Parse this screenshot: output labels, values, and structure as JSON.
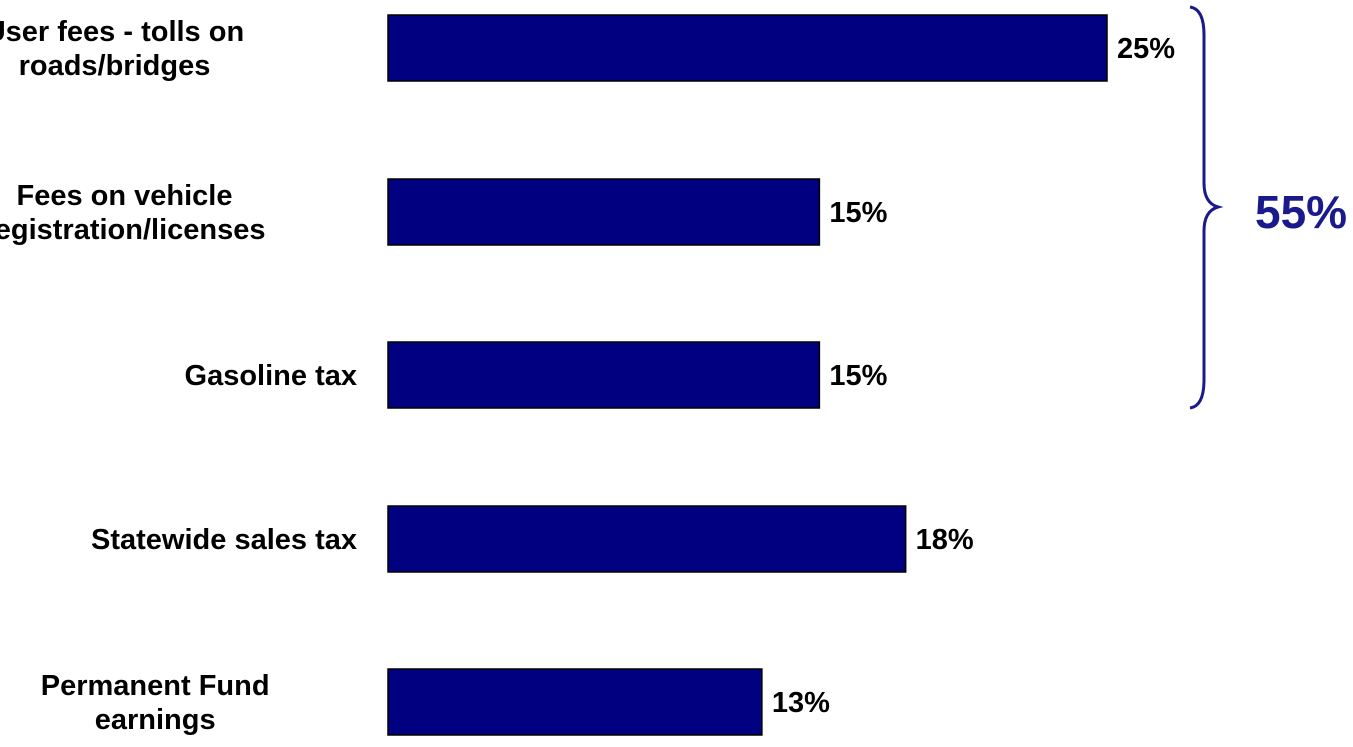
{
  "chart_data": {
    "type": "bar",
    "orientation": "horizontal",
    "categories": [
      [
        "User fees - tolls on",
        "roads/bridges"
      ],
      [
        "Fees on vehicle",
        "registration/licenses"
      ],
      [
        "Gasoline tax"
      ],
      [
        "Statewide sales tax"
      ],
      [
        "Permanent Fund",
        "earnings"
      ]
    ],
    "values": [
      25,
      15,
      15,
      18,
      13
    ],
    "value_labels": [
      "25%",
      "15%",
      "15%",
      "18%",
      "13%"
    ],
    "value_unit": "%",
    "xlim": [
      0,
      25
    ],
    "grid": false,
    "bar_color": "#000080",
    "group_annotation": {
      "label": "55%",
      "covers_categories": [
        0,
        1,
        2
      ],
      "color": "#1A1A8C"
    }
  }
}
